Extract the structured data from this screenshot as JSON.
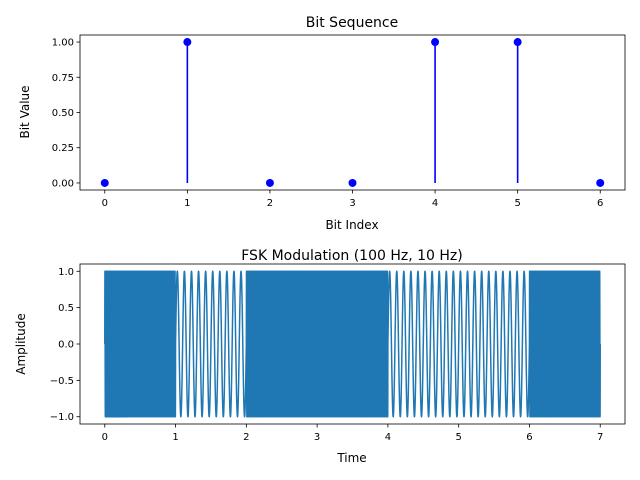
{
  "chart_data": [
    {
      "type": "stem",
      "title": "Bit Sequence",
      "xlabel": "Bit Index",
      "ylabel": "Bit Value",
      "x": [
        0,
        1,
        2,
        3,
        4,
        5,
        6
      ],
      "values": [
        0,
        1,
        0,
        0,
        1,
        1,
        0
      ],
      "xlim": [
        -0.3,
        6.3
      ],
      "ylim": [
        -0.05,
        1.05
      ],
      "xticks": [
        0,
        1,
        2,
        3,
        4,
        5,
        6
      ],
      "yticks": [
        0.0,
        0.25,
        0.5,
        0.75,
        1.0
      ],
      "ytick_labels": [
        "0.00",
        "0.25",
        "0.50",
        "0.75",
        "1.00"
      ],
      "color": "#0000ff",
      "grid": false
    },
    {
      "type": "line",
      "title": "FSK Modulation (100 Hz, 10 Hz)",
      "xlabel": "Time",
      "ylabel": "Amplitude",
      "bits": [
        0,
        1,
        0,
        0,
        1,
        1,
        0
      ],
      "frequencies": {
        "bit_0": 100,
        "bit_1": 10
      },
      "amplitude": 1.0,
      "t_range": [
        0,
        7
      ],
      "xlim": [
        -0.35,
        7.35
      ],
      "ylim": [
        -1.1,
        1.1
      ],
      "xticks": [
        0,
        1,
        2,
        3,
        4,
        5,
        6,
        7
      ],
      "yticks": [
        -1.0,
        -0.5,
        0.0,
        0.5,
        1.0
      ],
      "ytick_labels": [
        "−1.0",
        "−0.5",
        "0.0",
        "0.5",
        "1.0"
      ],
      "color": "#1f77b4",
      "grid": false
    }
  ]
}
